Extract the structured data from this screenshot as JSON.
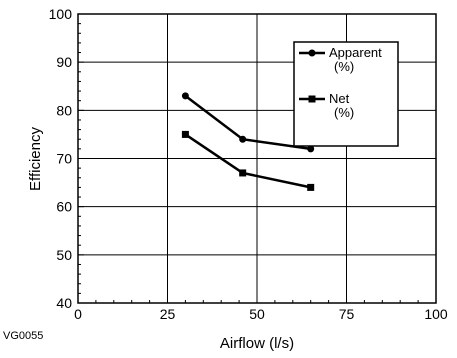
{
  "figure_code": "VG0055",
  "chart_data": {
    "type": "line",
    "title": "",
    "xlabel": "Airflow (l/s)",
    "ylabel": "Efficiency",
    "xlim": [
      0,
      100
    ],
    "ylim": [
      40,
      100
    ],
    "xticks": [
      0,
      25,
      50,
      75,
      100
    ],
    "yticks": [
      40,
      50,
      60,
      70,
      80,
      90,
      100
    ],
    "grid": true,
    "legend_position": "top-right",
    "series": [
      {
        "name": "Apparent (%)",
        "legend_lines": [
          "Apparent",
          "(%)"
        ],
        "marker": "circle",
        "color": "#000000",
        "x": [
          30,
          46,
          65
        ],
        "y": [
          83,
          74,
          72
        ]
      },
      {
        "name": "Net (%)",
        "legend_lines": [
          "Net",
          "(%)"
        ],
        "marker": "square",
        "color": "#000000",
        "x": [
          30,
          46,
          65
        ],
        "y": [
          75,
          67,
          64
        ]
      }
    ]
  }
}
